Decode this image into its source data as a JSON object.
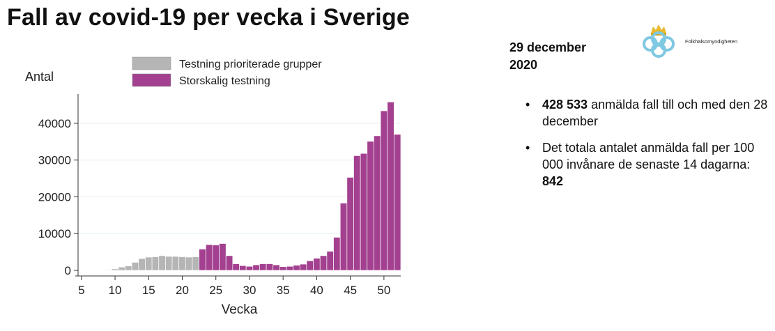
{
  "title": "Fall av covid-19 per vecka i Sverige",
  "date_line1": "29 december",
  "date_line2": "2020",
  "logo_text": "Folkhälsomyndigheten",
  "bullets": [
    {
      "bold": "428 533",
      "text": " anmälda fall till och med den 28 december"
    },
    {
      "pre": "Det totala antalet anmälda fall per 100 000 invånare de senaste 14 dagarna: ",
      "bold": "842"
    }
  ],
  "chart_data": {
    "type": "bar",
    "ylabel": "Antal",
    "xlabel": "Vecka",
    "xlim": [
      4.5,
      52.5
    ],
    "ylim": [
      0,
      47000
    ],
    "xticks": [
      5,
      10,
      15,
      20,
      25,
      30,
      35,
      40,
      45,
      50
    ],
    "yticks": [
      0,
      10000,
      20000,
      30000,
      40000
    ],
    "legend": "top",
    "series": [
      {
        "name": "Testning prioriterade grupper",
        "color": "#b5b5b5",
        "x": [
          6,
          9,
          10,
          11,
          12,
          13,
          14,
          15,
          16,
          17,
          18,
          19,
          20,
          21,
          22
        ],
        "values": [
          100,
          150,
          400,
          900,
          1200,
          2200,
          3200,
          3600,
          3700,
          4000,
          3800,
          3800,
          3700,
          3600,
          3700
        ]
      },
      {
        "name": "Storskalig testning",
        "color": "#a3408f",
        "x": [
          23,
          24,
          25,
          26,
          27,
          28,
          29,
          30,
          31,
          32,
          33,
          34,
          35,
          36,
          37,
          38,
          39,
          40,
          41,
          42,
          43,
          44,
          45,
          46,
          47,
          48,
          49,
          50,
          51,
          52
        ],
        "values": [
          5800,
          7000,
          6900,
          7300,
          4000,
          1800,
          1300,
          1100,
          1500,
          1800,
          1800,
          1500,
          1000,
          1100,
          1400,
          1700,
          2600,
          3300,
          4000,
          5200,
          9000,
          18300,
          25300,
          31200,
          31800,
          35100,
          36600,
          43400,
          45800,
          37000
        ]
      }
    ]
  }
}
